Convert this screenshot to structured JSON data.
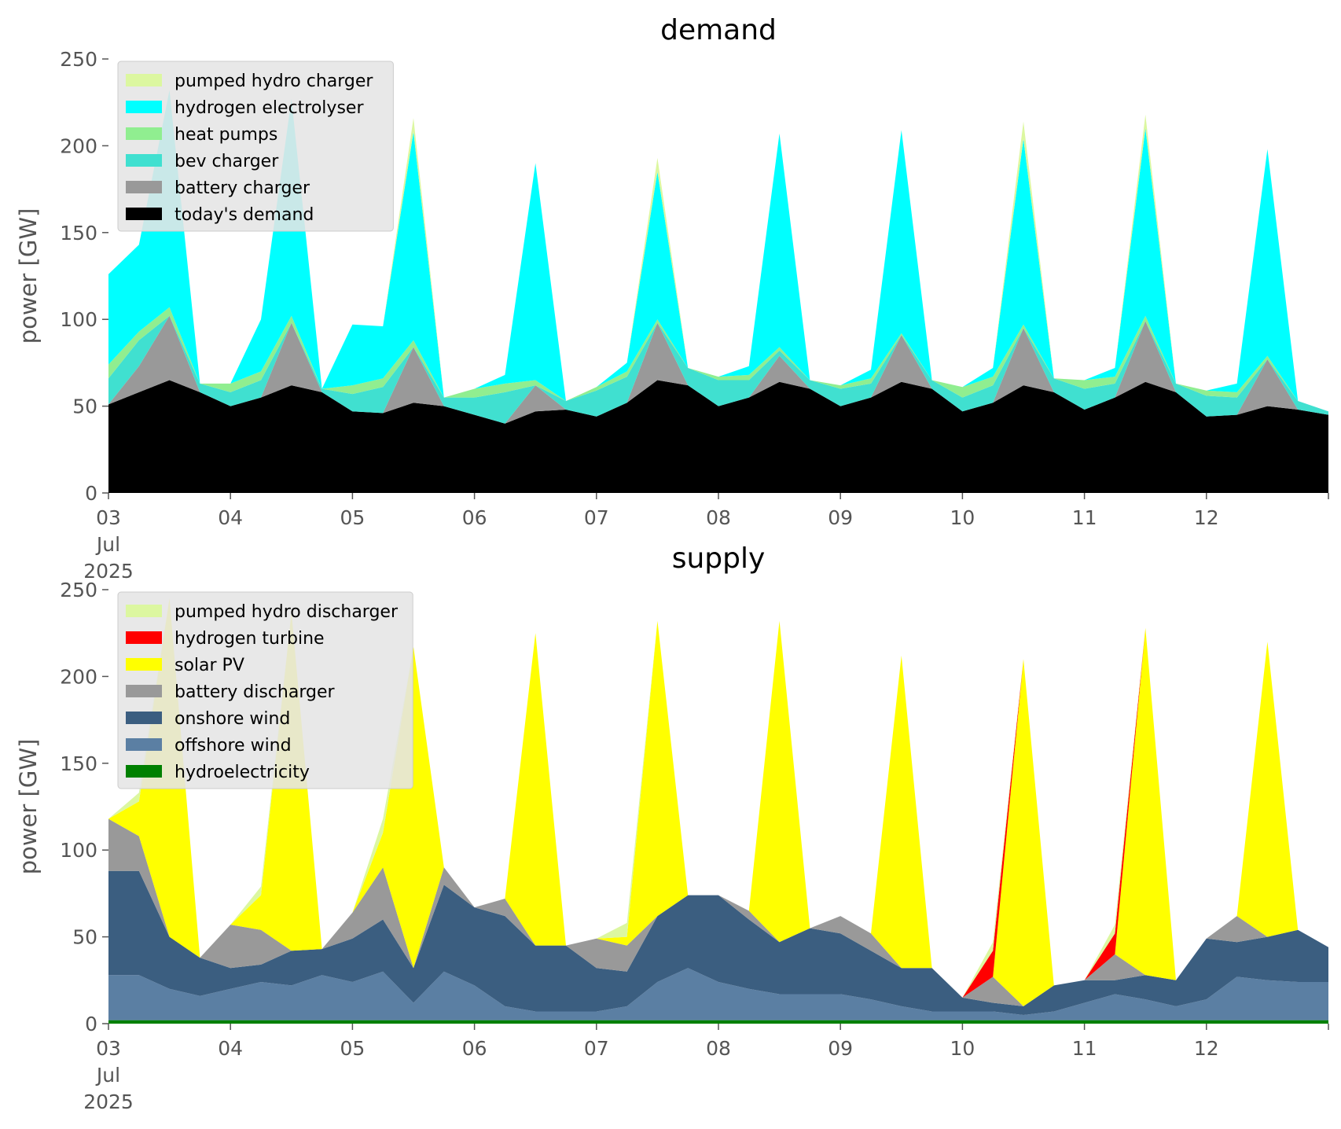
{
  "chart_data": [
    {
      "type": "area",
      "title": "demand",
      "ylabel": "power [GW]",
      "xlabel": "",
      "ylim": [
        0,
        250
      ],
      "yticks": [
        0,
        50,
        100,
        150,
        200,
        250
      ],
      "xlim": [
        "2025-07-03 00:00",
        "2025-07-13 00:00"
      ],
      "xtick_labels": [
        "03\nJul\n2025",
        "04",
        "05",
        "06",
        "07",
        "08",
        "09",
        "10",
        "11",
        "12"
      ],
      "legend_position": "upper-left",
      "stacked": true,
      "x": [
        "2025-07-03 00:00",
        "2025-07-03 06:00",
        "2025-07-03 12:00",
        "2025-07-03 18:00",
        "2025-07-04 00:00",
        "2025-07-04 06:00",
        "2025-07-04 12:00",
        "2025-07-04 18:00",
        "2025-07-05 00:00",
        "2025-07-05 06:00",
        "2025-07-05 12:00",
        "2025-07-05 18:00",
        "2025-07-06 00:00",
        "2025-07-06 06:00",
        "2025-07-06 12:00",
        "2025-07-06 18:00",
        "2025-07-07 00:00",
        "2025-07-07 06:00",
        "2025-07-07 12:00",
        "2025-07-07 18:00",
        "2025-07-08 00:00",
        "2025-07-08 06:00",
        "2025-07-08 12:00",
        "2025-07-08 18:00",
        "2025-07-09 00:00",
        "2025-07-09 06:00",
        "2025-07-09 12:00",
        "2025-07-09 18:00",
        "2025-07-10 00:00",
        "2025-07-10 06:00",
        "2025-07-10 12:00",
        "2025-07-10 18:00",
        "2025-07-11 00:00",
        "2025-07-11 06:00",
        "2025-07-11 12:00",
        "2025-07-11 18:00",
        "2025-07-12 00:00",
        "2025-07-12 06:00",
        "2025-07-12 12:00",
        "2025-07-12 18:00",
        "2025-07-13 00:00"
      ],
      "series": [
        {
          "name": "today's demand",
          "color": "#000000",
          "values": [
            51,
            58,
            65,
            58,
            50,
            55,
            62,
            58,
            47,
            46,
            52,
            50,
            45,
            40,
            47,
            48,
            44,
            52,
            65,
            62,
            50,
            55,
            64,
            60,
            50,
            55,
            64,
            60,
            47,
            52,
            62,
            58,
            48,
            55,
            64,
            58,
            44,
            45,
            50,
            48,
            45
          ]
        },
        {
          "name": "battery charger",
          "color": "#999999",
          "values": [
            0,
            15,
            37,
            0,
            0,
            0,
            36,
            0,
            0,
            0,
            32,
            0,
            0,
            0,
            15,
            0,
            0,
            0,
            33,
            0,
            0,
            0,
            15,
            0,
            0,
            0,
            27,
            0,
            0,
            0,
            33,
            0,
            0,
            0,
            35,
            0,
            0,
            0,
            27,
            0,
            0
          ]
        },
        {
          "name": "bev charger",
          "color": "#40e0d0",
          "values": [
            15,
            15,
            0,
            5,
            8,
            10,
            0,
            2,
            10,
            15,
            0,
            5,
            10,
            18,
            0,
            5,
            15,
            15,
            0,
            10,
            15,
            10,
            3,
            5,
            10,
            8,
            0,
            5,
            8,
            10,
            0,
            8,
            12,
            8,
            0,
            5,
            12,
            10,
            0,
            5,
            2
          ]
        },
        {
          "name": "heat pumps",
          "color": "#90ee90",
          "values": [
            8,
            5,
            5,
            0,
            5,
            5,
            4,
            0,
            5,
            5,
            4,
            0,
            5,
            5,
            3,
            0,
            2,
            3,
            2,
            0,
            2,
            3,
            2,
            0,
            2,
            3,
            1,
            0,
            6,
            5,
            2,
            0,
            5,
            4,
            3,
            0,
            3,
            3,
            2,
            0,
            0
          ]
        },
        {
          "name": "hydrogen electrolyser",
          "color": "#00ffff",
          "values": [
            52,
            50,
            125,
            0,
            0,
            30,
            125,
            0,
            35,
            30,
            120,
            0,
            0,
            5,
            125,
            0,
            0,
            5,
            85,
            0,
            0,
            5,
            123,
            0,
            0,
            5,
            117,
            0,
            0,
            5,
            107,
            0,
            0,
            5,
            108,
            0,
            0,
            5,
            119,
            0,
            0
          ]
        },
        {
          "name": "pumped hydro charger",
          "color": "#dcf7a0",
          "values": [
            0,
            0,
            0,
            0,
            0,
            0,
            0,
            0,
            0,
            0,
            8,
            0,
            0,
            0,
            0,
            0,
            0,
            0,
            8,
            0,
            0,
            0,
            0,
            0,
            0,
            0,
            0,
            0,
            0,
            0,
            10,
            0,
            0,
            0,
            8,
            0,
            0,
            0,
            0,
            0,
            0
          ]
        }
      ]
    },
    {
      "type": "area",
      "title": "supply",
      "ylabel": "power [GW]",
      "xlabel": "",
      "ylim": [
        0,
        250
      ],
      "yticks": [
        0,
        50,
        100,
        150,
        200,
        250
      ],
      "xlim": [
        "2025-07-03 00:00",
        "2025-07-13 00:00"
      ],
      "xtick_labels": [
        "03\nJul\n2025",
        "04",
        "05",
        "06",
        "07",
        "08",
        "09",
        "10",
        "11",
        "12"
      ],
      "legend_position": "upper-left",
      "stacked": true,
      "x": [
        "2025-07-03 00:00",
        "2025-07-03 06:00",
        "2025-07-03 12:00",
        "2025-07-03 18:00",
        "2025-07-04 00:00",
        "2025-07-04 06:00",
        "2025-07-04 12:00",
        "2025-07-04 18:00",
        "2025-07-05 00:00",
        "2025-07-05 06:00",
        "2025-07-05 12:00",
        "2025-07-05 18:00",
        "2025-07-06 00:00",
        "2025-07-06 06:00",
        "2025-07-06 12:00",
        "2025-07-06 18:00",
        "2025-07-07 00:00",
        "2025-07-07 06:00",
        "2025-07-07 12:00",
        "2025-07-07 18:00",
        "2025-07-08 00:00",
        "2025-07-08 06:00",
        "2025-07-08 12:00",
        "2025-07-08 18:00",
        "2025-07-09 00:00",
        "2025-07-09 06:00",
        "2025-07-09 12:00",
        "2025-07-09 18:00",
        "2025-07-10 00:00",
        "2025-07-10 06:00",
        "2025-07-10 12:00",
        "2025-07-10 18:00",
        "2025-07-11 00:00",
        "2025-07-11 06:00",
        "2025-07-11 12:00",
        "2025-07-11 18:00",
        "2025-07-12 00:00",
        "2025-07-12 06:00",
        "2025-07-12 12:00",
        "2025-07-12 18:00",
        "2025-07-13 00:00"
      ],
      "series": [
        {
          "name": "hydroelectricity",
          "color": "#008000",
          "values": [
            2,
            2,
            2,
            2,
            2,
            2,
            2,
            2,
            2,
            2,
            2,
            2,
            2,
            2,
            2,
            2,
            2,
            2,
            2,
            2,
            2,
            2,
            2,
            2,
            2,
            2,
            2,
            2,
            2,
            2,
            2,
            2,
            2,
            2,
            2,
            2,
            2,
            2,
            2,
            2,
            2
          ]
        },
        {
          "name": "offshore wind",
          "color": "#5b7fa3",
          "values": [
            26,
            26,
            18,
            14,
            18,
            22,
            20,
            26,
            22,
            28,
            10,
            28,
            20,
            8,
            5,
            5,
            5,
            8,
            22,
            30,
            22,
            18,
            15,
            15,
            15,
            12,
            8,
            5,
            5,
            5,
            3,
            5,
            10,
            15,
            12,
            8,
            12,
            25,
            23,
            22,
            22
          ]
        },
        {
          "name": "onshore wind",
          "color": "#3b5e80",
          "values": [
            60,
            60,
            30,
            22,
            12,
            10,
            20,
            15,
            25,
            30,
            20,
            50,
            45,
            52,
            38,
            38,
            25,
            20,
            38,
            42,
            50,
            40,
            30,
            38,
            35,
            28,
            22,
            25,
            8,
            5,
            5,
            15,
            13,
            8,
            14,
            15,
            35,
            20,
            25,
            30,
            20
          ]
        },
        {
          "name": "battery discharger",
          "color": "#999999",
          "values": [
            30,
            20,
            0,
            0,
            25,
            20,
            0,
            0,
            15,
            30,
            0,
            10,
            0,
            10,
            0,
            0,
            17,
            15,
            0,
            0,
            0,
            5,
            0,
            0,
            10,
            10,
            0,
            0,
            0,
            15,
            0,
            0,
            0,
            15,
            0,
            0,
            0,
            15,
            0,
            0,
            0
          ]
        },
        {
          "name": "solar PV",
          "color": "#ffff00",
          "values": [
            0,
            20,
            195,
            0,
            0,
            20,
            195,
            0,
            0,
            20,
            185,
            0,
            0,
            0,
            180,
            0,
            0,
            5,
            170,
            0,
            0,
            0,
            185,
            0,
            0,
            0,
            180,
            0,
            0,
            0,
            200,
            0,
            0,
            0,
            200,
            0,
            0,
            0,
            170,
            0,
            0
          ]
        },
        {
          "name": "hydrogen turbine",
          "color": "#ff0000",
          "values": [
            0,
            0,
            0,
            0,
            0,
            0,
            0,
            0,
            0,
            0,
            0,
            0,
            0,
            0,
            0,
            0,
            0,
            0,
            0,
            0,
            0,
            0,
            0,
            0,
            0,
            0,
            0,
            0,
            0,
            15,
            0,
            0,
            0,
            12,
            0,
            0,
            0,
            0,
            0,
            0,
            0
          ]
        },
        {
          "name": "pumped hydro discharger",
          "color": "#dcf7a0",
          "values": [
            0,
            5,
            0,
            0,
            0,
            5,
            0,
            0,
            0,
            8,
            0,
            0,
            0,
            0,
            0,
            0,
            0,
            8,
            0,
            0,
            0,
            0,
            0,
            0,
            0,
            0,
            0,
            0,
            0,
            5,
            0,
            0,
            0,
            5,
            0,
            0,
            0,
            0,
            0,
            0,
            0
          ]
        }
      ]
    }
  ]
}
